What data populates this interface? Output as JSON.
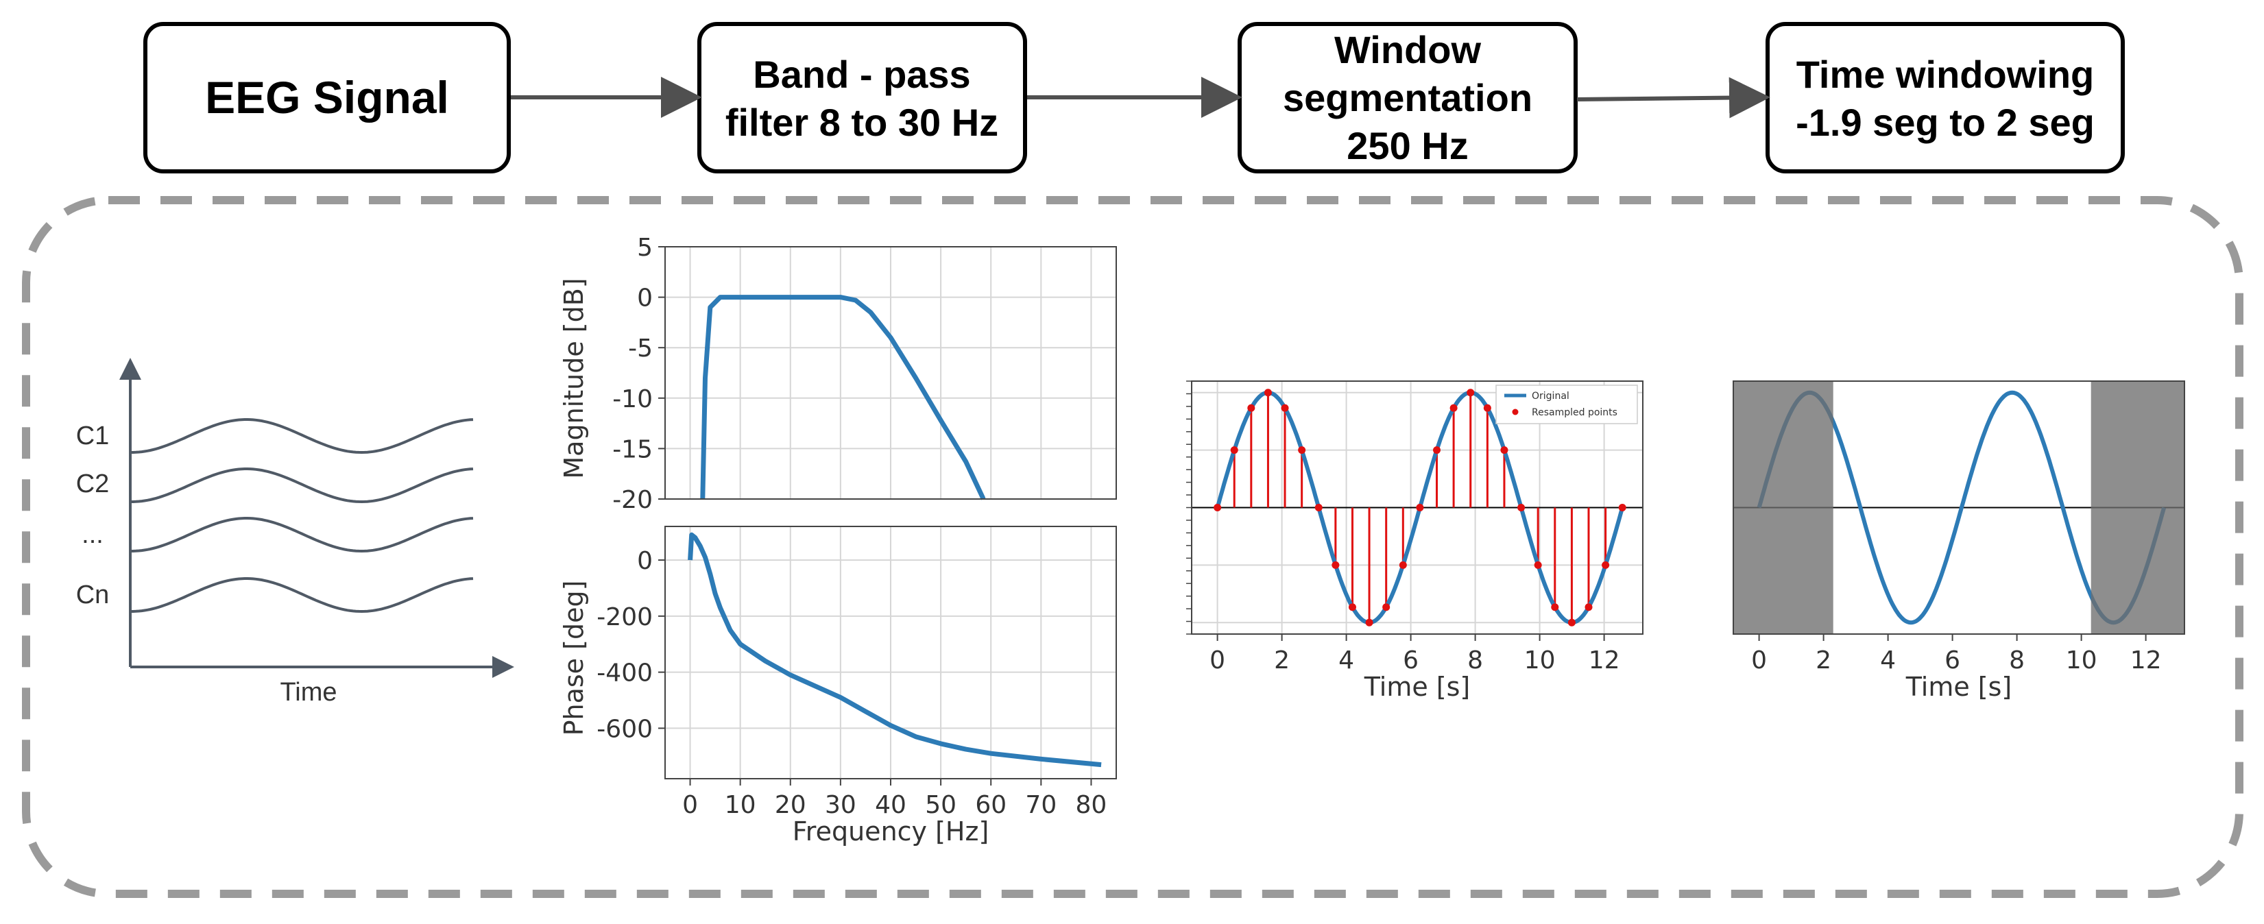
{
  "pipeline": {
    "stages": [
      {
        "lines": [
          "EEG Signal"
        ]
      },
      {
        "lines": [
          "Band - pass",
          "filter 8 to 30 Hz"
        ]
      },
      {
        "lines": [
          "Window",
          "segmentation",
          "250 Hz"
        ]
      },
      {
        "lines": [
          "Time windowing",
          "-1.9 seg to 2 seg"
        ]
      }
    ]
  },
  "eeg_sketch": {
    "channels": [
      "C1",
      "C2",
      "...",
      "Cn"
    ],
    "xlabel": "Time"
  },
  "colors": {
    "line": "#2d7bb6",
    "sample": "#e01010",
    "shade": "#6e6e6e",
    "box_border": "#000000",
    "arrow": "#505050",
    "dashed_border": "#9a9a9a",
    "eeg_line": "#505a66"
  },
  "chart_data": [
    {
      "id": "magnitude",
      "type": "line",
      "ylabel": "Magnitude [dB]",
      "xlim": [
        -5,
        85
      ],
      "ylim": [
        -20,
        5
      ],
      "xticks": [
        0,
        10,
        20,
        30,
        40,
        50,
        60,
        70,
        80
      ],
      "yticks": [
        5,
        0,
        -5,
        -10,
        -15,
        -20
      ],
      "grid": true,
      "series": [
        {
          "name": "magnitude",
          "x": [
            2.5,
            3,
            4,
            6,
            10,
            20,
            30,
            33,
            36,
            40,
            45,
            50,
            55,
            58.5
          ],
          "y": [
            -20,
            -8,
            -1,
            0,
            0,
            0,
            0,
            -0.3,
            -1.5,
            -4,
            -8,
            -12.2,
            -16.3,
            -20
          ]
        }
      ]
    },
    {
      "id": "phase",
      "type": "line",
      "xlabel": "Frequency [Hz]",
      "ylabel": "Phase [deg]",
      "xlim": [
        -5,
        85
      ],
      "ylim": [
        -780,
        120
      ],
      "xticks": [
        0,
        10,
        20,
        30,
        40,
        50,
        60,
        70,
        80
      ],
      "yticks": [
        0,
        -200,
        -400,
        -600
      ],
      "grid": true,
      "series": [
        {
          "name": "phase",
          "x": [
            0,
            0.3,
            1,
            2,
            3,
            4,
            5,
            6,
            8,
            10,
            15,
            20,
            25,
            30,
            35,
            40,
            45,
            50,
            55,
            60,
            70,
            82
          ],
          "y": [
            0,
            90,
            80,
            50,
            10,
            -50,
            -120,
            -170,
            -250,
            -300,
            -360,
            -410,
            -450,
            -490,
            -540,
            -590,
            -630,
            -655,
            -675,
            -690,
            -710,
            -730
          ]
        }
      ]
    },
    {
      "id": "resampling",
      "type": "line",
      "xlabel": "Time [s]",
      "xlim": [
        -0.8,
        13.2
      ],
      "ylim": [
        -1.1,
        1.1
      ],
      "xticks": [
        0,
        2,
        4,
        6,
        8,
        10,
        12
      ],
      "grid": true,
      "legend": [
        "Original",
        "Resampled points"
      ],
      "legend_position": "top-right",
      "series": [
        {
          "name": "Original",
          "function": "sin(t)",
          "x_range": [
            0,
            12.566
          ]
        },
        {
          "name": "Resampled points",
          "x": [
            0,
            0.524,
            1.047,
            1.571,
            2.094,
            2.618,
            3.142,
            3.665,
            4.189,
            4.712,
            5.236,
            5.76,
            6.283,
            6.807,
            7.33,
            7.854,
            8.378,
            8.901,
            9.425,
            9.948,
            10.472,
            10.996,
            11.519,
            12.043,
            12.566
          ],
          "y": [
            0,
            0.5,
            0.866,
            1,
            0.866,
            0.5,
            0,
            -0.5,
            -0.866,
            -1,
            -0.866,
            -0.5,
            0,
            0.5,
            0.866,
            1,
            0.866,
            0.5,
            0,
            -0.5,
            -0.866,
            -1,
            -0.866,
            -0.5,
            0
          ]
        }
      ]
    },
    {
      "id": "windowing",
      "type": "line",
      "xlabel": "Time [s]",
      "xlim": [
        -0.8,
        13.2
      ],
      "ylim": [
        -1.1,
        1.1
      ],
      "xticks": [
        0,
        2,
        4,
        6,
        8,
        10,
        12
      ],
      "grid": false,
      "shaded_regions": [
        [
          -0.8,
          2.3
        ],
        [
          10.3,
          13.2
        ]
      ],
      "series": [
        {
          "name": "signal",
          "function": "sin(t)",
          "x_range": [
            0,
            12.566
          ]
        }
      ]
    }
  ]
}
